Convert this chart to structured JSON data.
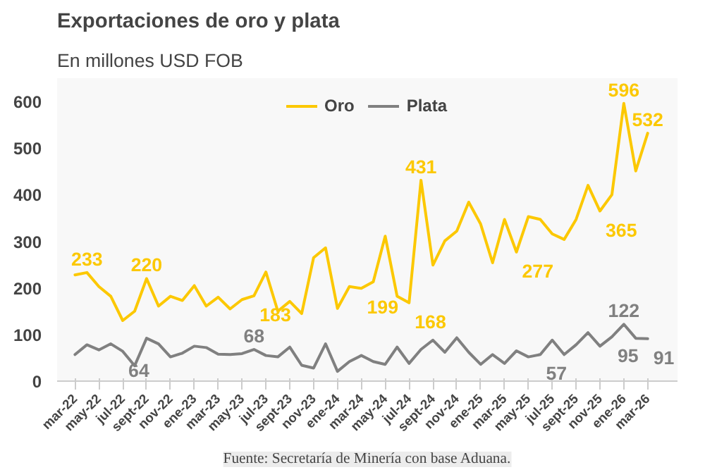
{
  "chart_data": {
    "type": "line",
    "title": "Exportaciones de oro y plata",
    "subtitle": "En millones USD FOB",
    "annotations": [
      "Fuente: Secretaría de Minería con base Aduana."
    ],
    "categories": [
      "mar-22",
      null,
      "may-22",
      null,
      "jul-22",
      null,
      "sept-22",
      null,
      "nov-22",
      null,
      "ene-23",
      null,
      "mar-23",
      null,
      "may-23",
      null,
      "jul-23",
      null,
      "sept-23",
      null,
      "nov-23",
      null,
      "ene-24",
      null,
      "mar-24",
      null,
      "may-24",
      null,
      "jul-24",
      null,
      "sept-24",
      null,
      "nov-24",
      null,
      "ene-25",
      null,
      "mar-25",
      null,
      "may-25",
      null,
      "jul-25",
      null,
      "sept-25",
      null,
      "nov-25",
      null,
      "ene-26",
      null,
      "mar-26"
    ],
    "series": [
      {
        "name": "Oro",
        "color": "#fcc800",
        "values": [
          228,
          233,
          203,
          182,
          130,
          150,
          220,
          161,
          182,
          173,
          205,
          161,
          180,
          155,
          175,
          183,
          234,
          150,
          171,
          145,
          265,
          286,
          156,
          203,
          199,
          213,
          311,
          182,
          168,
          431,
          249,
          301,
          322,
          384,
          337,
          254,
          347,
          277,
          353,
          347,
          316,
          304,
          347,
          420,
          365,
          400,
          596,
          451,
          532
        ],
        "value_labels": [
          null,
          "233",
          null,
          null,
          null,
          null,
          "220",
          null,
          null,
          null,
          null,
          null,
          null,
          null,
          null,
          "183",
          null,
          null,
          null,
          null,
          null,
          null,
          null,
          null,
          "199",
          null,
          null,
          null,
          "168",
          "431",
          null,
          null,
          null,
          null,
          null,
          null,
          null,
          "277",
          null,
          null,
          null,
          null,
          null,
          null,
          "365",
          null,
          "596",
          null,
          "532"
        ]
      },
      {
        "name": "Plata",
        "color": "#808080",
        "values": [
          57,
          78,
          67,
          80,
          64,
          33,
          92,
          80,
          52,
          60,
          75,
          72,
          58,
          57,
          59,
          68,
          55,
          52,
          73,
          34,
          28,
          80,
          21,
          42,
          55,
          42,
          36,
          73,
          38,
          68,
          88,
          62,
          93,
          62,
          36,
          57,
          38,
          65,
          52,
          57,
          88,
          57,
          78,
          104,
          75,
          95,
          122,
          92,
          91
        ],
        "value_labels": [
          null,
          null,
          null,
          null,
          "64",
          null,
          null,
          null,
          null,
          null,
          null,
          null,
          null,
          null,
          null,
          "68",
          null,
          null,
          null,
          null,
          null,
          null,
          null,
          null,
          null,
          null,
          null,
          null,
          null,
          null,
          null,
          null,
          null,
          null,
          null,
          null,
          null,
          null,
          null,
          "57",
          null,
          null,
          null,
          null,
          null,
          "95",
          "122",
          null,
          "91"
        ]
      }
    ],
    "ylim": [
      0,
      650
    ],
    "yticks": [
      0,
      100,
      200,
      300,
      400,
      500,
      600
    ],
    "grid": false,
    "legend": "top",
    "marker": "none",
    "line_style": "solid"
  }
}
